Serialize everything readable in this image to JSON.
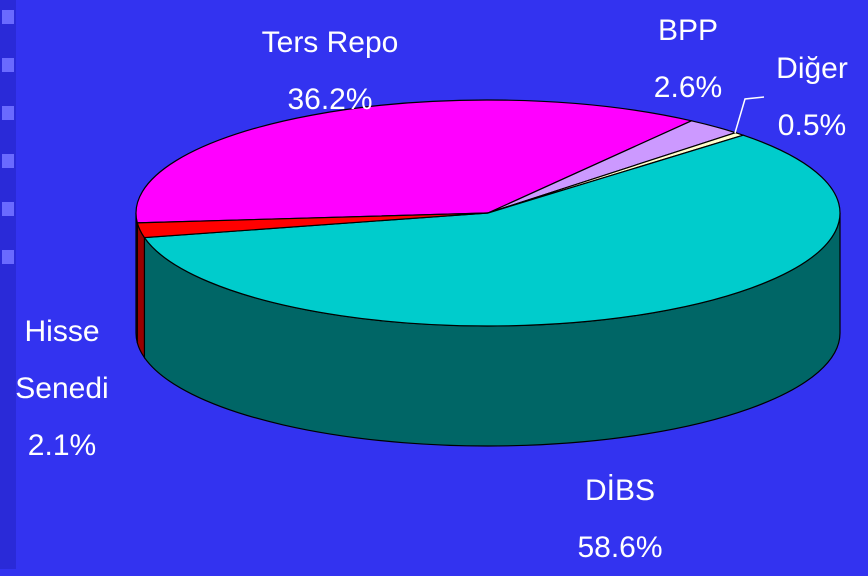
{
  "chart_data": {
    "type": "pie3d",
    "categories": [
      "Ters Repo",
      "BPP",
      "Diğer",
      "DİBS",
      "Hisse Senedi"
    ],
    "values": [
      36.2,
      2.6,
      0.5,
      58.6,
      2.1
    ],
    "value_labels": [
      "36.2%",
      "2.6%",
      "0.5%",
      "58.6%",
      "2.1%"
    ],
    "colors": [
      "#ff00ff",
      "#cc99ff",
      "#ffffcc",
      "#00cccc",
      "#ff0000"
    ],
    "side_colors": [
      "#990099",
      "#7a5c99",
      "#99997a",
      "#006666",
      "#990000"
    ]
  }
}
